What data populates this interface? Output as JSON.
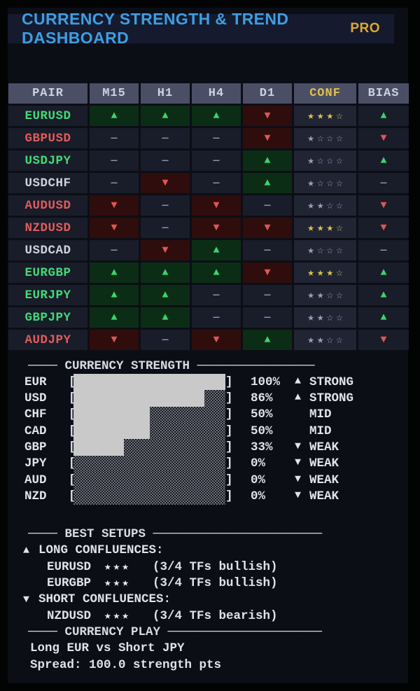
{
  "header": {
    "title": "CURRENCY STRENGTH & TREND DASHBOARD",
    "badge": "PRO"
  },
  "symbols": {
    "up": "▲",
    "down": "▼",
    "flat": "—"
  },
  "colors": {
    "accent_blue": "#3d9ee2",
    "accent_gold": "#dfa92f",
    "bull_green": "#3bd46c",
    "bear_red": "#e35555",
    "gold_star": "#d5c44d",
    "grey_star": "#9aa0af",
    "bull_cell_bg": "#0c2d15",
    "bear_cell_bg": "#2f0d0d"
  },
  "table": {
    "columns": [
      "PAIR",
      "M15",
      "H1",
      "H4",
      "D1",
      "CONF",
      "BIAS"
    ],
    "rows": [
      {
        "pair": "EURUSD",
        "pair_tone": "bull",
        "m15": "up",
        "h1": "up",
        "h4": "up",
        "d1": "down",
        "conf_stars": "★★★☆",
        "conf_tone": "gold",
        "bias": "up"
      },
      {
        "pair": "GBPUSD",
        "pair_tone": "bear",
        "m15": "flat",
        "h1": "flat",
        "h4": "flat",
        "d1": "down",
        "conf_stars": "★☆☆☆",
        "conf_tone": "grey",
        "bias": "down"
      },
      {
        "pair": "USDJPY",
        "pair_tone": "bull",
        "m15": "flat",
        "h1": "flat",
        "h4": "flat",
        "d1": "up",
        "conf_stars": "★☆☆☆",
        "conf_tone": "grey",
        "bias": "up"
      },
      {
        "pair": "USDCHF",
        "pair_tone": "neut",
        "m15": "flat",
        "h1": "down",
        "h4": "flat",
        "d1": "up",
        "conf_stars": "★☆☆☆",
        "conf_tone": "grey",
        "bias": "flat"
      },
      {
        "pair": "AUDUSD",
        "pair_tone": "bear",
        "m15": "down",
        "h1": "flat",
        "h4": "down",
        "d1": "flat",
        "conf_stars": "★★☆☆",
        "conf_tone": "grey",
        "bias": "down"
      },
      {
        "pair": "NZDUSD",
        "pair_tone": "bear",
        "m15": "down",
        "h1": "flat",
        "h4": "down",
        "d1": "down",
        "conf_stars": "★★★☆",
        "conf_tone": "gold",
        "bias": "down"
      },
      {
        "pair": "USDCAD",
        "pair_tone": "neut",
        "m15": "flat",
        "h1": "down",
        "h4": "up",
        "d1": "flat",
        "conf_stars": "★☆☆☆",
        "conf_tone": "grey",
        "bias": "flat"
      },
      {
        "pair": "EURGBP",
        "pair_tone": "bull",
        "m15": "up",
        "h1": "up",
        "h4": "up",
        "d1": "down",
        "conf_stars": "★★★☆",
        "conf_tone": "gold",
        "bias": "up"
      },
      {
        "pair": "EURJPY",
        "pair_tone": "bull",
        "m15": "up",
        "h1": "up",
        "h4": "flat",
        "d1": "flat",
        "conf_stars": "★★☆☆",
        "conf_tone": "grey",
        "bias": "up"
      },
      {
        "pair": "GBPJPY",
        "pair_tone": "bull",
        "m15": "up",
        "h1": "up",
        "h4": "flat",
        "d1": "flat",
        "conf_stars": "★★☆☆",
        "conf_tone": "grey",
        "bias": "up"
      },
      {
        "pair": "AUDJPY",
        "pair_tone": "bear",
        "m15": "down",
        "h1": "flat",
        "h4": "down",
        "d1": "up",
        "conf_stars": "★★☆☆",
        "conf_tone": "grey",
        "bias": "down"
      }
    ]
  },
  "strength": {
    "heading": "──── CURRENCY STRENGTH ────────────────",
    "bracket_open": "[",
    "bracket_close": "]",
    "rows": [
      {
        "currency": "EUR",
        "percent": 100,
        "percent_label": "100%",
        "arrow": "▲",
        "state": "STRONG"
      },
      {
        "currency": "USD",
        "percent": 86,
        "percent_label": "86%",
        "arrow": "▲",
        "state": "STRONG"
      },
      {
        "currency": "CHF",
        "percent": 50,
        "percent_label": "50%",
        "arrow": "",
        "state": "MID"
      },
      {
        "currency": "CAD",
        "percent": 50,
        "percent_label": "50%",
        "arrow": "",
        "state": "MID"
      },
      {
        "currency": "GBP",
        "percent": 33,
        "percent_label": "33%",
        "arrow": "▼",
        "state": "WEAK"
      },
      {
        "currency": "JPY",
        "percent": 0,
        "percent_label": "0%",
        "arrow": "▼",
        "state": "WEAK"
      },
      {
        "currency": "AUD",
        "percent": 0,
        "percent_label": "0%",
        "arrow": "▼",
        "state": "WEAK"
      },
      {
        "currency": "NZD",
        "percent": 0,
        "percent_label": "0%",
        "arrow": "▼",
        "state": "WEAK"
      }
    ]
  },
  "setups": {
    "heading": "──── BEST SETUPS ───────────────────────",
    "long_header": {
      "arrow": "▲",
      "label": "LONG CONFLUENCES:"
    },
    "long_items": [
      {
        "pair": "EURUSD",
        "stars": "★★★",
        "note": "(3/4 TFs bullish)"
      },
      {
        "pair": "EURGBP",
        "stars": "★★★",
        "note": "(3/4 TFs bullish)"
      }
    ],
    "short_header": {
      "arrow": "▼",
      "label": "SHORT CONFLUENCES:"
    },
    "short_items": [
      {
        "pair": "NZDUSD",
        "stars": "★★★",
        "note": "(3/4 TFs bearish)"
      }
    ]
  },
  "play": {
    "heading": "──── CURRENCY PLAY ─────────────────────",
    "lines": [
      "Long EUR vs Short JPY",
      "Spread: 100.0 strength pts"
    ]
  }
}
